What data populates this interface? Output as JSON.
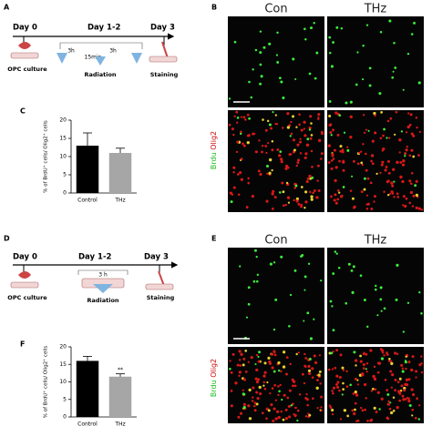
{
  "timelines": [
    {
      "label": "A",
      "days": [
        "Day 0",
        "Day 1-2",
        "Day 3"
      ],
      "steps": [
        "OPC culture",
        "Radiation",
        "Staining"
      ],
      "intervals": [
        "3h",
        "15min",
        "3h"
      ]
    },
    {
      "label": "D",
      "days": [
        "Day 0",
        "Day 1-2",
        "Day 3"
      ],
      "steps": [
        "OPC culture",
        "Radiation",
        "Staining"
      ],
      "intervals": [
        "3 h"
      ]
    }
  ],
  "image_panels": [
    {
      "label": "B",
      "columns": [
        "Con",
        "THz"
      ],
      "stains": [
        "Brdu",
        "Olig2"
      ]
    },
    {
      "label": "E",
      "columns": [
        "Con",
        "THz"
      ],
      "stains": [
        "Brdu",
        "Olig2"
      ]
    }
  ],
  "chart_data": [
    {
      "type": "bar",
      "panel": "C",
      "ylabel": "% of BrdU⁺ cells/ Olig2⁺ cells",
      "categories": [
        "Control",
        "THz"
      ],
      "values": [
        13,
        11
      ],
      "errors": [
        3.5,
        1.3
      ],
      "colors": [
        "#000000",
        "#a6a6a6"
      ],
      "ylim": [
        0,
        20
      ],
      "yticks": [
        0,
        5,
        10,
        15,
        20
      ]
    },
    {
      "type": "bar",
      "panel": "F",
      "ylabel": "% of BrdU⁺ cells/ Olig2⁺ cells",
      "categories": [
        "Control",
        "THz"
      ],
      "values": [
        16,
        11.5
      ],
      "errors": [
        1.3,
        0.8
      ],
      "value_annotations": [
        null,
        "**"
      ],
      "colors": [
        "#000000",
        "#a6a6a6"
      ],
      "ylim": [
        0,
        20
      ],
      "yticks": [
        0,
        5,
        10,
        15,
        20
      ]
    }
  ]
}
